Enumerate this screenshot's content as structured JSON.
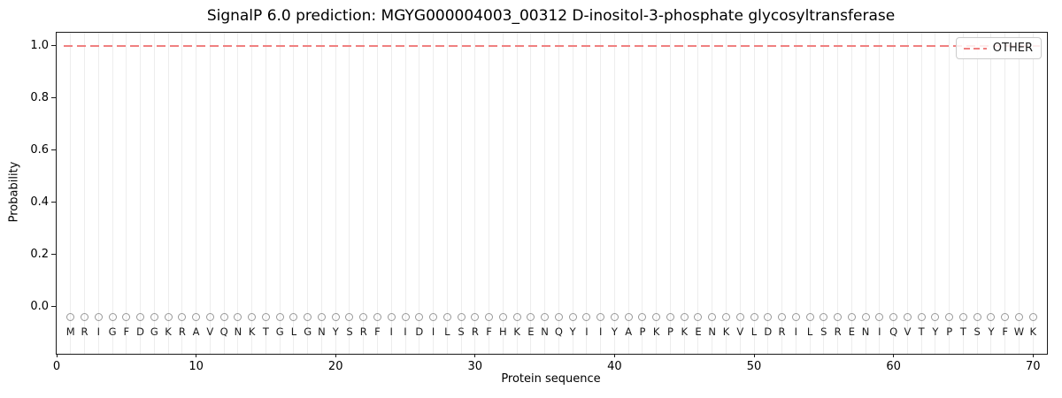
{
  "chart_data": {
    "type": "line",
    "title": "SignalP 6.0 prediction: MGYG000004003_00312 D-inositol-3-phosphate glycosyltransferase",
    "xlabel": "Protein sequence",
    "ylabel": "Probability",
    "xlim": [
      0,
      71
    ],
    "ylim": [
      -0.18,
      1.05
    ],
    "x_ticks": [
      0,
      10,
      20,
      30,
      40,
      50,
      60,
      70
    ],
    "y_ticks": [
      "0.0",
      "0.2",
      "0.4",
      "0.6",
      "0.8",
      "1.0"
    ],
    "grid": "faint vertical gridline at each residue position",
    "legend": {
      "position": "upper right",
      "entries": [
        {
          "label": "OTHER",
          "color": "#f08080",
          "style": "dashed"
        }
      ]
    },
    "sequence": "MRIGFDGKRAVQNKTGLGNYSRFIIDILSRFHKENQYIIYAPKPKENKVLDRILSRENIQVTYPTSYFWK",
    "series": [
      {
        "name": "OTHER",
        "style": "dashed",
        "color": "#f08080",
        "x": [
          1,
          2,
          3,
          4,
          5,
          6,
          7,
          8,
          9,
          10,
          11,
          12,
          13,
          14,
          15,
          16,
          17,
          18,
          19,
          20,
          21,
          22,
          23,
          24,
          25,
          26,
          27,
          28,
          29,
          30,
          31,
          32,
          33,
          34,
          35,
          36,
          37,
          38,
          39,
          40,
          41,
          42,
          43,
          44,
          45,
          46,
          47,
          48,
          49,
          50,
          51,
          52,
          53,
          54,
          55,
          56,
          57,
          58,
          59,
          60,
          61,
          62,
          63,
          64,
          65,
          66,
          67,
          68,
          69,
          70
        ],
        "values": [
          1.0,
          1.0,
          1.0,
          1.0,
          1.0,
          1.0,
          1.0,
          1.0,
          1.0,
          1.0,
          1.0,
          1.0,
          1.0,
          1.0,
          1.0,
          1.0,
          1.0,
          1.0,
          1.0,
          1.0,
          1.0,
          1.0,
          1.0,
          1.0,
          1.0,
          1.0,
          1.0,
          1.0,
          1.0,
          1.0,
          1.0,
          1.0,
          1.0,
          1.0,
          1.0,
          1.0,
          1.0,
          1.0,
          1.0,
          1.0,
          1.0,
          1.0,
          1.0,
          1.0,
          1.0,
          1.0,
          1.0,
          1.0,
          1.0,
          1.0,
          1.0,
          1.0,
          1.0,
          1.0,
          1.0,
          1.0,
          1.0,
          1.0,
          1.0,
          1.0,
          1.0,
          1.0,
          1.0,
          1.0,
          1.0,
          1.0,
          1.0,
          1.0,
          1.0,
          1.0
        ]
      }
    ],
    "residue_markers": {
      "shape": "open-circle",
      "color": "#999999",
      "y": -0.04
    },
    "residue_label_y": -0.095
  }
}
